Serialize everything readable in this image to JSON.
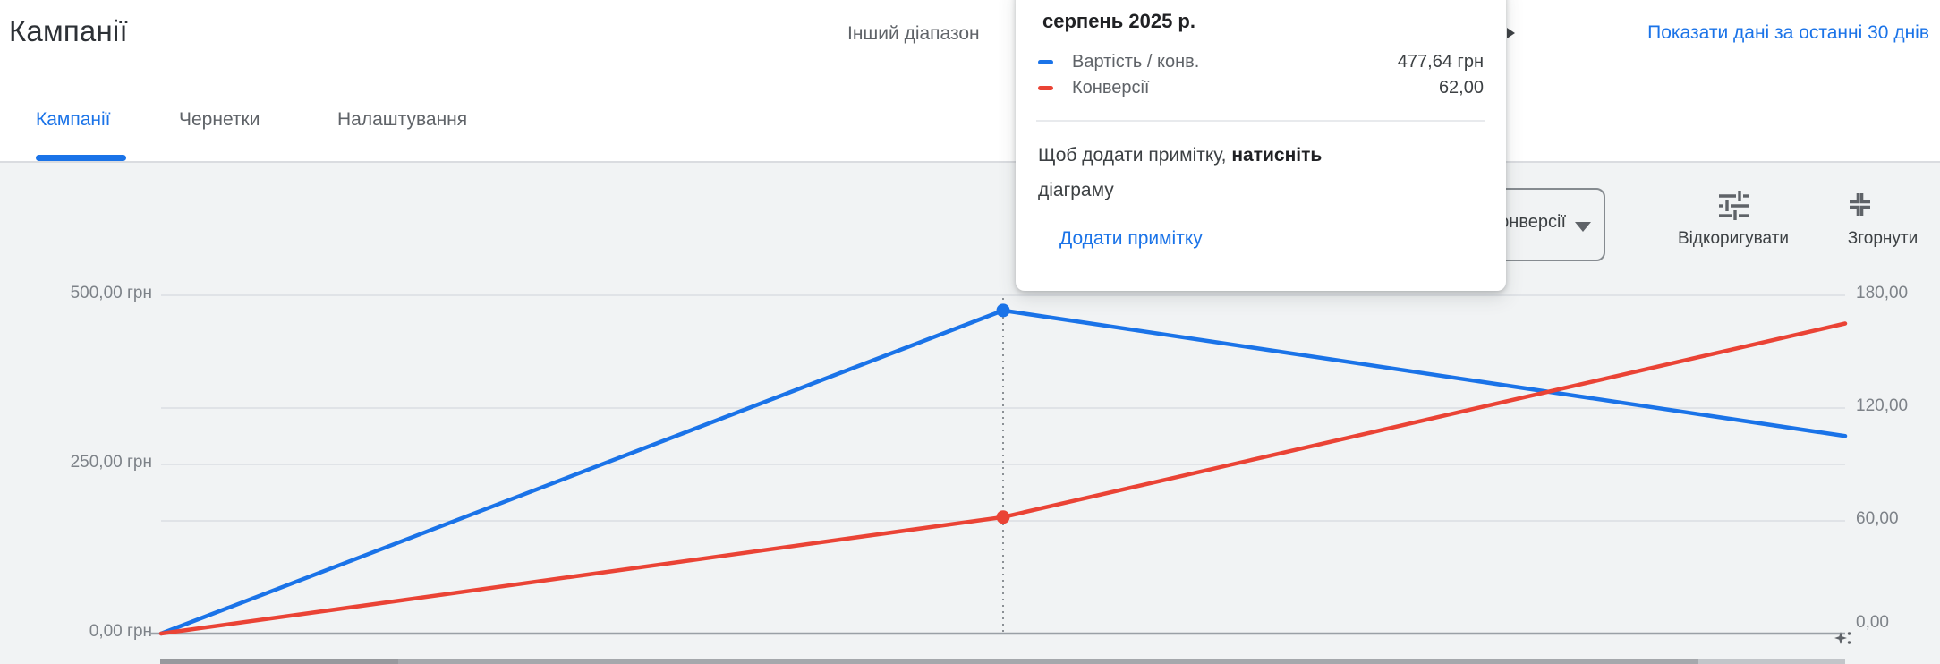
{
  "page": {
    "title": "Кампанії"
  },
  "header": {
    "date_range_label": "Інший діапазон",
    "show_data_link": "Показати дані за останні 30 днів"
  },
  "tabs": [
    {
      "label": "Кампанії",
      "active": true
    },
    {
      "label": "Чернетки",
      "active": false
    },
    {
      "label": "Налаштування",
      "active": false
    }
  ],
  "toolbar": {
    "metric_dropdown_value": "Конверсії",
    "adjust_label": "Відкоригувати",
    "collapse_label": "Згорнути"
  },
  "tooltip": {
    "title": "серпень 2025 р.",
    "rows": [
      {
        "label": "Вартість / конв.",
        "value": "477,64 грн",
        "color": "#1a73e8"
      },
      {
        "label": "Конверсії",
        "value": "62,00",
        "color": "#ea4335"
      }
    ],
    "note_normal": "Щоб додати примітку, ",
    "note_bold": "натисніть",
    "note_line2": "діаграму",
    "add_note_link": "Додати примітку"
  },
  "colors": {
    "accent_blue": "#1a73e8",
    "series_red": "#ea4335",
    "gridline": "#e0e3e7",
    "baseline": "#9aa0a6"
  },
  "chart_data": {
    "type": "line",
    "title": "",
    "x_point_count": 3,
    "x_labels_visible": false,
    "highlighted_x_label": "серпень 2025 р.",
    "series": [
      {
        "name": "Вартість / конв.",
        "axis": "left",
        "color": "#1a73e8",
        "values": [
          0,
          477.64,
          292
        ]
      },
      {
        "name": "Конверсії",
        "axis": "right",
        "color": "#ea4335",
        "values": [
          0,
          62,
          165
        ]
      }
    ],
    "left_axis": {
      "unit": "грн",
      "min": 0,
      "max": 500,
      "ticks": [
        {
          "label": "500,00 грн",
          "value": 500
        },
        {
          "label": "250,00 грн",
          "value": 250
        },
        {
          "label": "0,00 грн",
          "value": 0
        }
      ]
    },
    "right_axis": {
      "min": 0,
      "max": 180,
      "ticks": [
        {
          "label": "180,00",
          "value": 180
        },
        {
          "label": "120,00",
          "value": 120
        },
        {
          "label": "60,00",
          "value": 60
        },
        {
          "label": "0,00",
          "value": 0
        }
      ]
    },
    "markers": [
      {
        "series": 0,
        "point": 1,
        "value_label": "477,64 грн"
      },
      {
        "series": 1,
        "point": 1,
        "value_label": "62,00"
      }
    ],
    "dotted_line_point": 1,
    "grid": true,
    "legend_position": "tooltip"
  }
}
